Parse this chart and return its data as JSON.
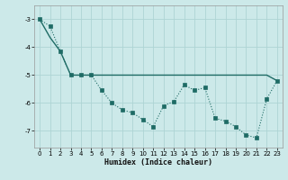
{
  "xlabel": "Humidex (Indice chaleur)",
  "background_color": "#cce9e9",
  "grid_color": "#aed4d4",
  "line_color": "#1e6b65",
  "xlim": [
    -0.5,
    23.5
  ],
  "ylim": [
    -7.6,
    -2.5
  ],
  "yticks": [
    -7,
    -6,
    -5,
    -4,
    -3
  ],
  "xticks": [
    0,
    1,
    2,
    3,
    4,
    5,
    6,
    7,
    8,
    9,
    10,
    11,
    12,
    13,
    14,
    15,
    16,
    17,
    18,
    19,
    20,
    21,
    22,
    23
  ],
  "series1_x": [
    0,
    1,
    2,
    3,
    4,
    5,
    6,
    7,
    8,
    9,
    10,
    11,
    12,
    13,
    14,
    15,
    16,
    17,
    18,
    19,
    20,
    21,
    22,
    23
  ],
  "series1_y": [
    -3.0,
    -3.25,
    -4.15,
    -5.0,
    -5.0,
    -5.0,
    -5.55,
    -6.0,
    -6.25,
    -6.35,
    -6.6,
    -6.85,
    -6.1,
    -5.95,
    -5.35,
    -5.55,
    -5.45,
    -6.55,
    -6.65,
    -6.85,
    -7.15,
    -7.25,
    -5.85,
    -5.2
  ],
  "series2_x": [
    0,
    1,
    2,
    3,
    4,
    5,
    6,
    7,
    8,
    9,
    10,
    11,
    12,
    13,
    14,
    15,
    16,
    17,
    18,
    19,
    20,
    21,
    22,
    23
  ],
  "series2_y": [
    -3.0,
    -3.65,
    -4.15,
    -5.0,
    -5.0,
    -5.0,
    -5.0,
    -5.0,
    -5.0,
    -5.0,
    -5.0,
    -5.0,
    -5.0,
    -5.0,
    -5.0,
    -5.0,
    -5.0,
    -5.0,
    -5.0,
    -5.0,
    -5.0,
    -5.0,
    -5.0,
    -5.2
  ]
}
